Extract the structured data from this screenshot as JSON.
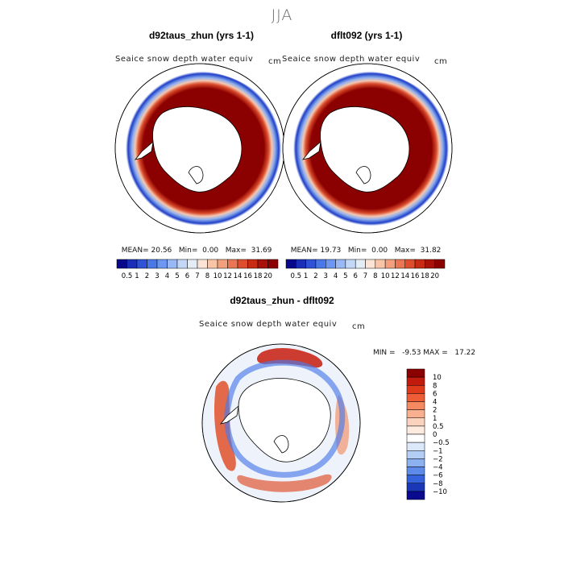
{
  "page": {
    "season_title": "JJA"
  },
  "panels": [
    {
      "title": "d92taus_zhun (yrs 1-1)",
      "subtitle": "Seaice snow depth water equiv",
      "units": "cm",
      "stats": {
        "mean_label": "MEAN=",
        "mean": "20.56",
        "min_label": "Min=",
        "min": "0.00",
        "max_label": "Max=",
        "max": "31.69"
      }
    },
    {
      "title": "dflt092 (yrs 1-1)",
      "subtitle": "Seaice snow depth water equiv",
      "units": "cm",
      "stats": {
        "mean_label": "MEAN=",
        "mean": "19.73",
        "min_label": "Min=",
        "min": "0.00",
        "max_label": "Max=",
        "max": "31.82"
      }
    }
  ],
  "abs_colorbar": {
    "labels": [
      "0.5",
      "1",
      "2",
      "3",
      "4",
      "5",
      "6",
      "7",
      "8",
      "10",
      "12",
      "14",
      "16",
      "18",
      "20"
    ],
    "colors": [
      "#08088a",
      "#1a2fb8",
      "#2f52d6",
      "#4a78e8",
      "#6d97f0",
      "#98b9f5",
      "#c3d7f7",
      "#e4ecf6",
      "#fbe4d6",
      "#f8c5a9",
      "#f3a07c",
      "#ea7653",
      "#de4d2d",
      "#c82b14",
      "#a8120a",
      "#8b0000"
    ]
  },
  "diff_panel": {
    "title": "d92taus_zhun - dflt092",
    "subtitle": "Seaice snow depth water equiv",
    "units": "cm",
    "stats_text": "MIN =   -9.53 MAX =   17.22"
  },
  "diff_colorbar": {
    "labels": [
      "10",
      "8",
      "6",
      "4",
      "2",
      "1",
      "0.5",
      "0",
      "−0.5",
      "−1",
      "−2",
      "−4",
      "−6",
      "−8",
      "−10"
    ],
    "colors": [
      "#8b0000",
      "#c21a0c",
      "#e03a1c",
      "#ee5d36",
      "#f58a62",
      "#f9b091",
      "#fbd2bd",
      "#fdebdf",
      "#ffffff",
      "#dbe8fa",
      "#b3cdf5",
      "#8cb0f0",
      "#5e8aea",
      "#3463dc",
      "#1a37b8",
      "#0a0a90"
    ]
  }
}
